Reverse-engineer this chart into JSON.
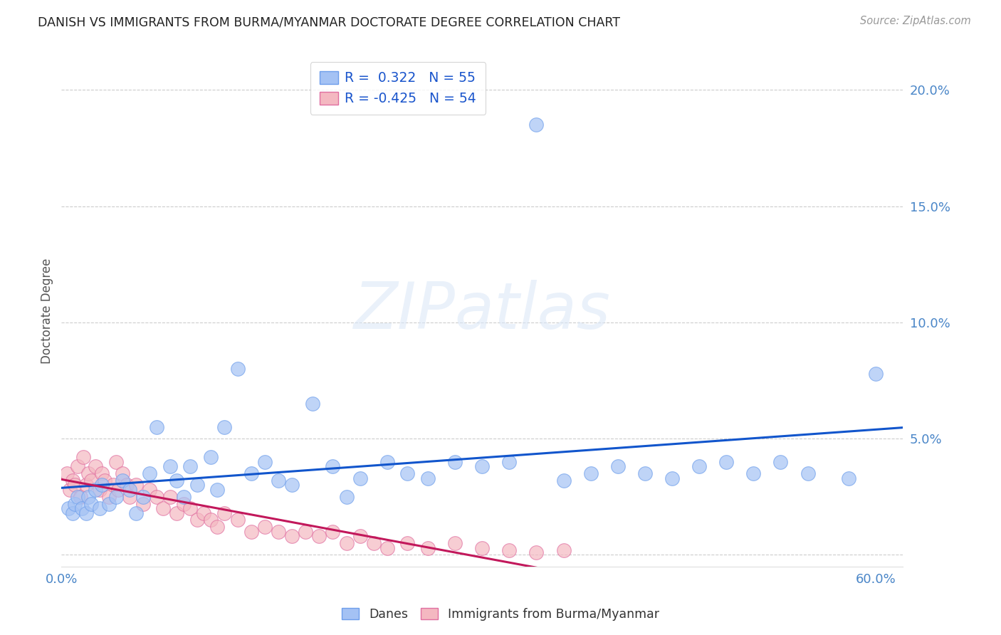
{
  "title": "DANISH VS IMMIGRANTS FROM BURMA/MYANMAR DOCTORATE DEGREE CORRELATION CHART",
  "source": "Source: ZipAtlas.com",
  "ylabel": "Doctorate Degree",
  "xlim": [
    0.0,
    0.62
  ],
  "ylim": [
    -0.005,
    0.215
  ],
  "blue_color": "#a4c2f4",
  "pink_color": "#f4b8c1",
  "blue_edge_color": "#6d9eeb",
  "pink_edge_color": "#e06ea0",
  "blue_line_color": "#1155cc",
  "pink_line_color": "#c2185b",
  "background_color": "#ffffff",
  "grid_color": "#cccccc",
  "legend_R_blue": " 0.322",
  "legend_N_blue": "55",
  "legend_R_pink": "-0.425",
  "legend_N_pink": "54",
  "legend_label_blue": "Danes",
  "legend_label_pink": "Immigrants from Burma/Myanmar",
  "watermark": "ZIPatlas",
  "danes_x": [
    0.005,
    0.008,
    0.01,
    0.012,
    0.015,
    0.018,
    0.02,
    0.022,
    0.025,
    0.028,
    0.03,
    0.035,
    0.04,
    0.045,
    0.05,
    0.055,
    0.06,
    0.065,
    0.07,
    0.08,
    0.085,
    0.09,
    0.095,
    0.1,
    0.11,
    0.115,
    0.12,
    0.13,
    0.14,
    0.15,
    0.16,
    0.17,
    0.185,
    0.2,
    0.21,
    0.22,
    0.24,
    0.255,
    0.27,
    0.29,
    0.31,
    0.33,
    0.35,
    0.37,
    0.39,
    0.41,
    0.43,
    0.45,
    0.47,
    0.49,
    0.51,
    0.53,
    0.55,
    0.58,
    0.6
  ],
  "danes_y": [
    0.02,
    0.018,
    0.022,
    0.025,
    0.02,
    0.018,
    0.025,
    0.022,
    0.028,
    0.02,
    0.03,
    0.022,
    0.025,
    0.032,
    0.028,
    0.018,
    0.025,
    0.035,
    0.055,
    0.038,
    0.032,
    0.025,
    0.038,
    0.03,
    0.042,
    0.028,
    0.055,
    0.08,
    0.035,
    0.04,
    0.032,
    0.03,
    0.065,
    0.038,
    0.025,
    0.033,
    0.04,
    0.035,
    0.033,
    0.04,
    0.038,
    0.04,
    0.185,
    0.032,
    0.035,
    0.038,
    0.035,
    0.033,
    0.038,
    0.04,
    0.035,
    0.04,
    0.035,
    0.033,
    0.078
  ],
  "burma_x": [
    0.004,
    0.006,
    0.008,
    0.01,
    0.012,
    0.014,
    0.016,
    0.018,
    0.02,
    0.022,
    0.025,
    0.028,
    0.03,
    0.032,
    0.035,
    0.038,
    0.04,
    0.042,
    0.045,
    0.048,
    0.05,
    0.055,
    0.06,
    0.065,
    0.07,
    0.075,
    0.08,
    0.085,
    0.09,
    0.095,
    0.1,
    0.105,
    0.11,
    0.115,
    0.12,
    0.13,
    0.14,
    0.15,
    0.16,
    0.17,
    0.18,
    0.19,
    0.2,
    0.21,
    0.22,
    0.23,
    0.24,
    0.255,
    0.27,
    0.29,
    0.31,
    0.33,
    0.35,
    0.37
  ],
  "burma_y": [
    0.035,
    0.028,
    0.032,
    0.03,
    0.038,
    0.025,
    0.042,
    0.03,
    0.035,
    0.032,
    0.038,
    0.028,
    0.035,
    0.032,
    0.025,
    0.03,
    0.04,
    0.028,
    0.035,
    0.03,
    0.025,
    0.03,
    0.022,
    0.028,
    0.025,
    0.02,
    0.025,
    0.018,
    0.022,
    0.02,
    0.015,
    0.018,
    0.015,
    0.012,
    0.018,
    0.015,
    0.01,
    0.012,
    0.01,
    0.008,
    0.01,
    0.008,
    0.01,
    0.005,
    0.008,
    0.005,
    0.003,
    0.005,
    0.003,
    0.005,
    0.003,
    0.002,
    0.001,
    0.002
  ]
}
